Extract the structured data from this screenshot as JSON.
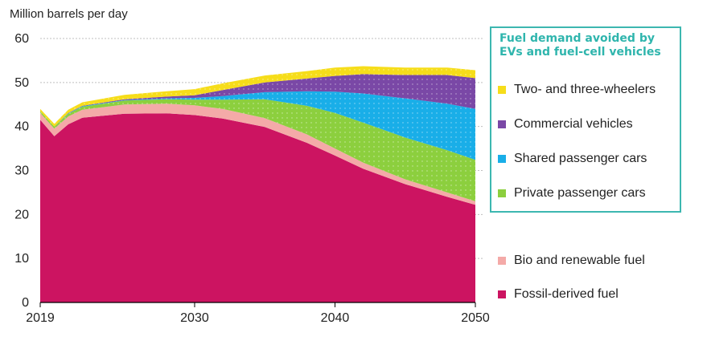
{
  "chart_data": {
    "type": "area",
    "stacked": true,
    "ylabel": "Million barrels per day",
    "ylim": [
      0,
      60
    ],
    "yticks": [
      0,
      10,
      20,
      30,
      40,
      50,
      60
    ],
    "xlim": [
      2019,
      2050
    ],
    "xticks": [
      2019,
      2030,
      2040,
      2050
    ],
    "grid": "horizontal",
    "legend_title": "Fuel demand avoided by EVs and fuel-cell vehicles",
    "x": [
      2019,
      2020,
      2021,
      2022,
      2025,
      2028,
      2030,
      2032,
      2035,
      2038,
      2040,
      2042,
      2045,
      2048,
      2050
    ],
    "series": [
      {
        "name": "Fossil-derived fuel",
        "color": "#cc1461",
        "values": [
          41.5,
          37.8,
          40.5,
          42.0,
          42.9,
          43.0,
          42.6,
          41.8,
          39.9,
          36.3,
          33.4,
          30.4,
          26.9,
          24.0,
          22.2
        ]
      },
      {
        "name": "Bio and renewable fuel",
        "color": "#f4aaa8",
        "values": [
          1.6,
          1.7,
          1.8,
          1.8,
          2.1,
          2.2,
          2.2,
          2.2,
          2.0,
          1.9,
          1.6,
          1.4,
          1.1,
          1.0,
          0.8
        ]
      },
      {
        "name": "Private passenger cars",
        "color": "#8ccf3e",
        "values": [
          0.4,
          0.5,
          0.6,
          0.7,
          0.9,
          1.0,
          1.3,
          2.1,
          4.3,
          6.5,
          8.1,
          9.1,
          9.5,
          9.6,
          9.4
        ]
      },
      {
        "name": "Shared passenger cars",
        "color": "#19aee8",
        "values": [
          0.0,
          0.0,
          0.1,
          0.1,
          0.1,
          0.2,
          0.4,
          0.8,
          1.6,
          3.3,
          4.8,
          6.6,
          8.9,
          10.6,
          11.6
        ]
      },
      {
        "name": "Commercial vehicles",
        "color": "#7a48a6",
        "values": [
          0.0,
          0.0,
          0.1,
          0.1,
          0.2,
          0.4,
          0.6,
          1.4,
          2.2,
          2.9,
          3.6,
          4.4,
          5.3,
          6.5,
          7.0
        ]
      },
      {
        "name": "Two- and three-wheelers",
        "color": "#f6dd1a",
        "values": [
          0.5,
          0.6,
          0.7,
          0.8,
          1.0,
          1.2,
          1.4,
          1.5,
          1.6,
          1.7,
          1.9,
          1.8,
          1.7,
          1.7,
          1.8
        ]
      }
    ]
  }
}
